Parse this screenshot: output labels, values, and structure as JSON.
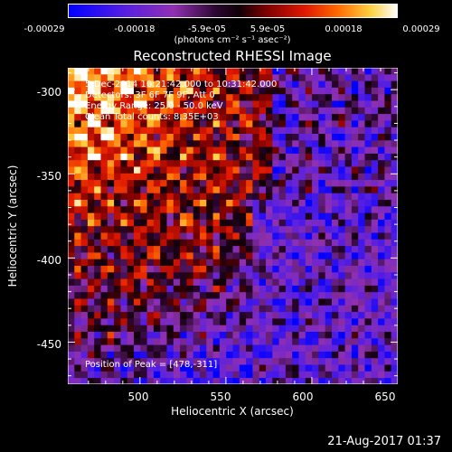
{
  "chart_data": {
    "type": "heatmap",
    "title": "Reconstructed RHESSI Image",
    "xlabel": "Heliocentric X (arcsec)",
    "ylabel": "Heliocentric Y (arcsec)",
    "xlim": [
      458,
      650
    ],
    "ylim": [
      -475,
      -287
    ],
    "xticks": [
      500,
      550,
      600,
      650
    ],
    "yticks": [
      -300,
      -350,
      -400,
      -450
    ],
    "colorbar": {
      "min": -0.00029,
      "max": 0.00029,
      "tick_labels": [
        "-0.00029",
        "-0.00018",
        "-5.9e-05",
        "5.9e-05",
        "0.00018",
        "0.00029"
      ],
      "unit_label": "(photons cm⁻² s⁻¹ asec⁻²)",
      "colors": [
        "#0000ff",
        "#7a2ad0",
        "#3a0840",
        "#8a0000",
        "#ff4800",
        "#ffd040",
        "#ffffff"
      ]
    },
    "annotations": {
      "time_range": "5-Dec-2014 10:21:42.000 to 10:31:42.000",
      "detectors": "Detectors: 3F 6F 7F 9F, Att 0",
      "energy": "Energy Range: 25.0 - 50.0 keV",
      "clean": "Clean   Total counts: 8.35E+03",
      "peak": "Position of Peak = [478,-311]"
    },
    "peak": [
      478,
      -311
    ]
  },
  "footer": {
    "timestamp": "21-Aug-2017 01:37"
  }
}
